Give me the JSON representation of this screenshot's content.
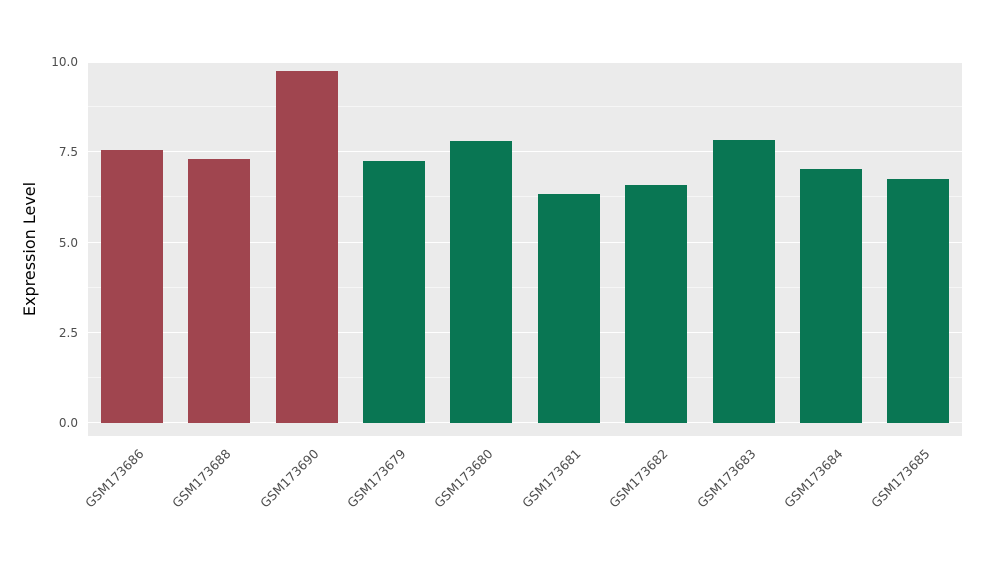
{
  "chart_data": {
    "type": "bar",
    "title": "",
    "xlabel": "",
    "ylabel": "Expression Level",
    "ylim": [
      0,
      10
    ],
    "grid": "on",
    "legend": "none",
    "panel_background": "#EBEBEB",
    "ytick_labels": [
      "0.0",
      "2.5",
      "5.0",
      "7.5",
      "10.0"
    ],
    "ytick_values": [
      0,
      2.5,
      5,
      7.5,
      10
    ],
    "minor_tick_values": [
      1.25,
      3.75,
      6.25,
      8.75
    ],
    "categories": [
      "GSM173686",
      "GSM173688",
      "GSM173690",
      "GSM173679",
      "GSM173680",
      "GSM173681",
      "GSM173682",
      "GSM173683",
      "GSM173684",
      "GSM173685"
    ],
    "values": [
      7.55,
      7.3,
      9.75,
      7.25,
      7.8,
      6.35,
      6.6,
      7.85,
      7.05,
      6.75
    ],
    "bar_colors": [
      "#A0454F",
      "#A0454F",
      "#A0454F",
      "#097653",
      "#097653",
      "#097653",
      "#097653",
      "#097653",
      "#097653",
      "#097653"
    ],
    "color_groups": {
      "maroon": "#A0454F",
      "green": "#097653"
    }
  }
}
